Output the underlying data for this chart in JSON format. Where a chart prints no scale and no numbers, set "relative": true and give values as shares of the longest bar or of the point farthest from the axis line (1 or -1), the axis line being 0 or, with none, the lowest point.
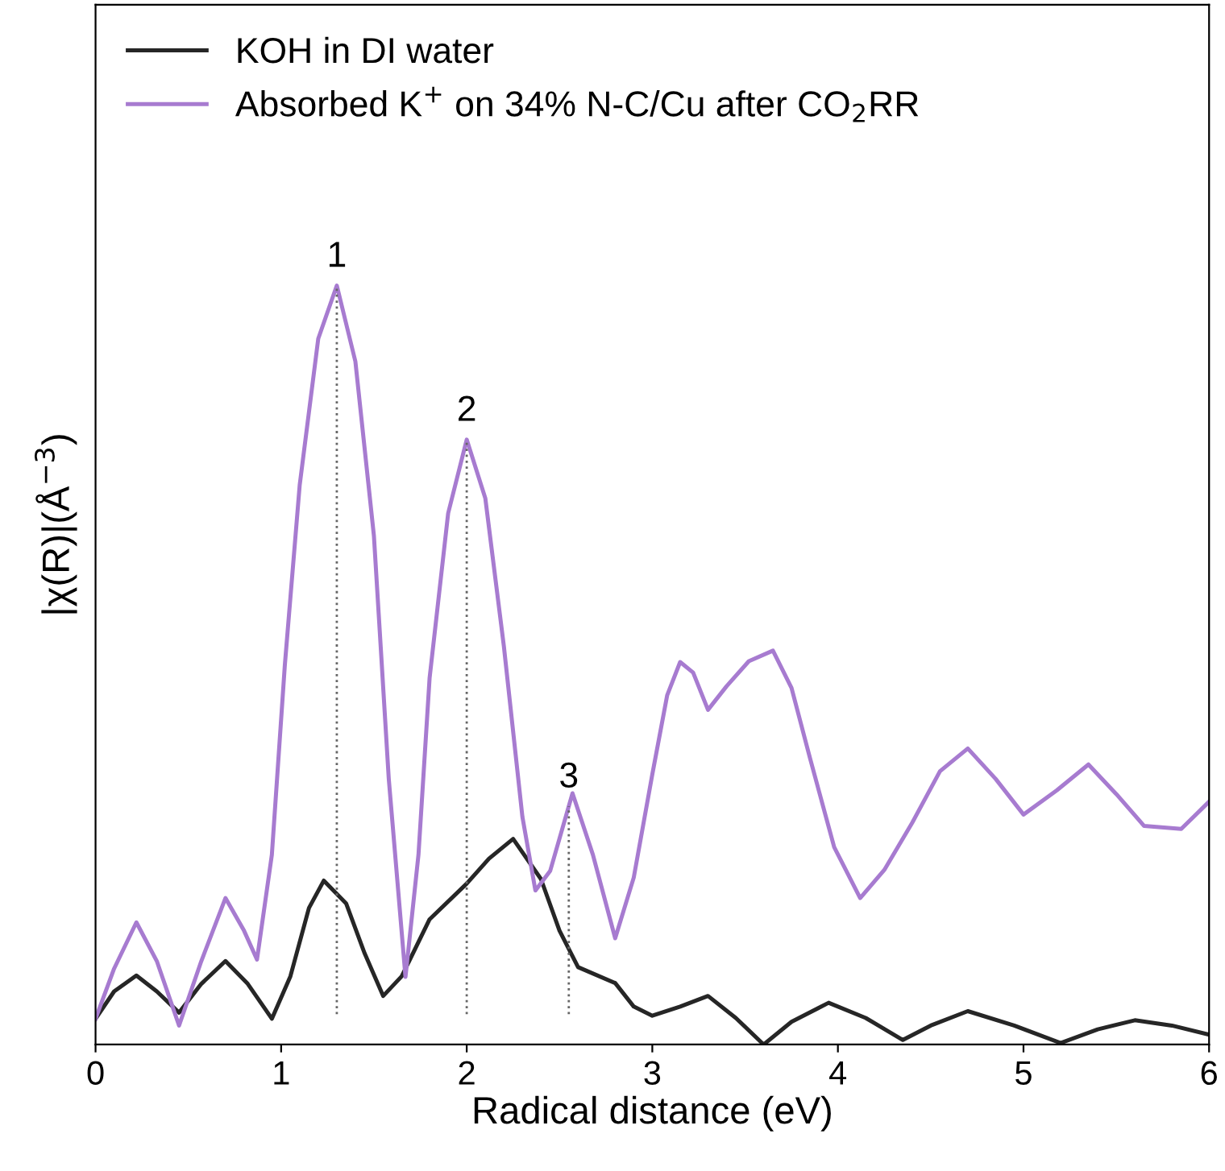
{
  "chart_data": {
    "type": "line",
    "relative": true,
    "xlabel": "Radical distance (eV)",
    "ylabel": "|χ(R)|(Å$^{−3}$)",
    "xlim": [
      0,
      6
    ],
    "xticks": [
      0,
      1,
      2,
      3,
      4,
      5,
      6
    ],
    "legend": "top left",
    "grid": false,
    "series": [
      {
        "name": "KOH in DI water",
        "color": "#262626",
        "x": [
          0,
          0.1,
          0.22,
          0.33,
          0.45,
          0.57,
          0.7,
          0.82,
          0.95,
          1.05,
          1.15,
          1.23,
          1.35,
          1.45,
          1.55,
          1.65,
          1.8,
          2.0,
          2.12,
          2.25,
          2.4,
          2.5,
          2.6,
          2.8,
          2.9,
          3.0,
          3.15,
          3.3,
          3.45,
          3.6,
          3.75,
          3.95,
          4.15,
          4.35,
          4.5,
          4.7,
          4.95,
          5.2,
          5.4,
          5.6,
          5.8,
          6.0
        ],
        "values": [
          0.034,
          0.07,
          0.091,
          0.07,
          0.042,
          0.08,
          0.11,
          0.08,
          0.034,
          0.09,
          0.18,
          0.216,
          0.186,
          0.12,
          0.064,
          0.09,
          0.165,
          0.212,
          0.245,
          0.271,
          0.218,
          0.15,
          0.102,
          0.081,
          0.05,
          0.038,
          0.05,
          0.064,
          0.035,
          0.0,
          0.03,
          0.055,
          0.035,
          0.006,
          0.025,
          0.044,
          0.025,
          0.002,
          0.02,
          0.032,
          0.025,
          0.013
        ]
      },
      {
        "name": "Absorbed K$^{+}$ on 34% N-C/Cu after CO$_{2}$RR",
        "color": "#a77bd0",
        "x": [
          0,
          0.1,
          0.22,
          0.33,
          0.45,
          0.57,
          0.7,
          0.8,
          0.87,
          0.95,
          1.02,
          1.1,
          1.2,
          1.3,
          1.4,
          1.5,
          1.58,
          1.67,
          1.74,
          1.8,
          1.9,
          2.0,
          2.1,
          2.2,
          2.3,
          2.37,
          2.45,
          2.57,
          2.68,
          2.8,
          2.9,
          3.0,
          3.08,
          3.15,
          3.22,
          3.3,
          3.4,
          3.52,
          3.65,
          3.75,
          3.85,
          3.98,
          4.12,
          4.25,
          4.4,
          4.55,
          4.7,
          4.85,
          5.0,
          5.18,
          5.35,
          5.5,
          5.65,
          5.85,
          6.0
        ],
        "values": [
          0.034,
          0.1,
          0.161,
          0.11,
          0.025,
          0.11,
          0.193,
          0.15,
          0.112,
          0.25,
          0.5,
          0.737,
          0.93,
          1.0,
          0.9,
          0.67,
          0.35,
          0.089,
          0.25,
          0.483,
          0.7,
          0.797,
          0.72,
          0.525,
          0.3,
          0.203,
          0.229,
          0.331,
          0.25,
          0.14,
          0.22,
          0.356,
          0.46,
          0.504,
          0.49,
          0.441,
          0.472,
          0.505,
          0.519,
          0.47,
          0.377,
          0.26,
          0.193,
          0.23,
          0.292,
          0.36,
          0.39,
          0.35,
          0.303,
          0.335,
          0.369,
          0.33,
          0.288,
          0.284,
          0.32
        ]
      }
    ],
    "ref_lines": [
      {
        "axis": "x",
        "value": 1.3,
        "label": "1",
        "line_style": "dotted",
        "color": "#666666"
      },
      {
        "axis": "x",
        "value": 2.0,
        "label": "2",
        "line_style": "dotted",
        "color": "#666666"
      },
      {
        "axis": "x",
        "value": 2.55,
        "label": "3",
        "line_style": "dotted",
        "color": "#666666"
      }
    ]
  }
}
